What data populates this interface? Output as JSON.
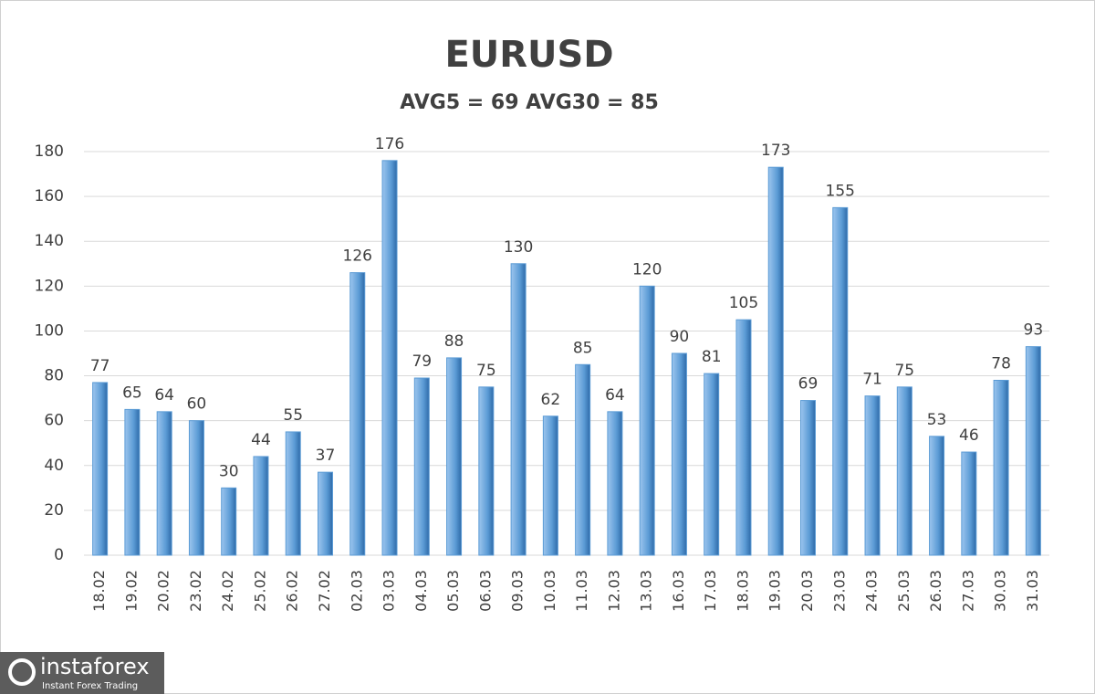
{
  "chart_data": {
    "type": "bar",
    "title": "EURUSD",
    "subtitle": "AVG5 = 69 AVG30 = 85",
    "categories": [
      "18.02",
      "19.02",
      "20.02",
      "23.02",
      "24.02",
      "25.02",
      "26.02",
      "27.02",
      "02.03",
      "03.03",
      "04.03",
      "05.03",
      "06.03",
      "09.03",
      "10.03",
      "11.03",
      "12.03",
      "13.03",
      "16.03",
      "17.03",
      "18.03",
      "19.03",
      "20.03",
      "23.03",
      "24.03",
      "25.03",
      "26.03",
      "27.03",
      "30.03",
      "31.03"
    ],
    "values": [
      77,
      65,
      64,
      60,
      30,
      44,
      55,
      37,
      126,
      176,
      79,
      88,
      75,
      130,
      62,
      85,
      64,
      120,
      90,
      81,
      105,
      173,
      69,
      155,
      71,
      75,
      53,
      46,
      78,
      93
    ],
    "color": "#5b9bd5",
    "ylim": [
      0,
      180
    ],
    "yticks": [
      0,
      20,
      40,
      60,
      80,
      100,
      120,
      140,
      160,
      180
    ],
    "grid": true
  },
  "watermark": {
    "brand": "instaforex",
    "tagline": "Instant Forex Trading"
  }
}
